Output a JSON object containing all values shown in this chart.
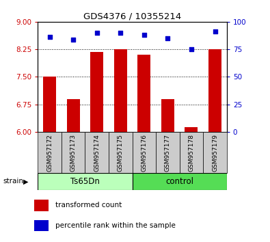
{
  "title": "GDS4376 / 10355214",
  "samples": [
    "GSM957172",
    "GSM957173",
    "GSM957174",
    "GSM957175",
    "GSM957176",
    "GSM957177",
    "GSM957178",
    "GSM957179"
  ],
  "bar_values": [
    7.5,
    6.9,
    8.18,
    8.25,
    8.1,
    6.9,
    6.12,
    8.25
  ],
  "percentile_values": [
    86,
    84,
    90,
    90,
    88,
    85,
    75,
    91
  ],
  "group1_label": "Ts65Dn",
  "group2_label": "control",
  "group1_color": "#bbffbb",
  "group2_color": "#55dd55",
  "bar_color": "#cc0000",
  "dot_color": "#0000cc",
  "ylim_left": [
    6,
    9
  ],
  "ylim_right": [
    0,
    100
  ],
  "yticks_left": [
    6,
    6.75,
    7.5,
    8.25,
    9
  ],
  "yticks_right": [
    0,
    25,
    50,
    75,
    100
  ],
  "grid_lines": [
    6.75,
    7.5,
    8.25
  ],
  "bar_width": 0.55,
  "tick_bg_color": "#cccccc",
  "legend_items": [
    {
      "label": "transformed count",
      "color": "#cc0000"
    },
    {
      "label": "percentile rank within the sample",
      "color": "#0000cc"
    }
  ]
}
